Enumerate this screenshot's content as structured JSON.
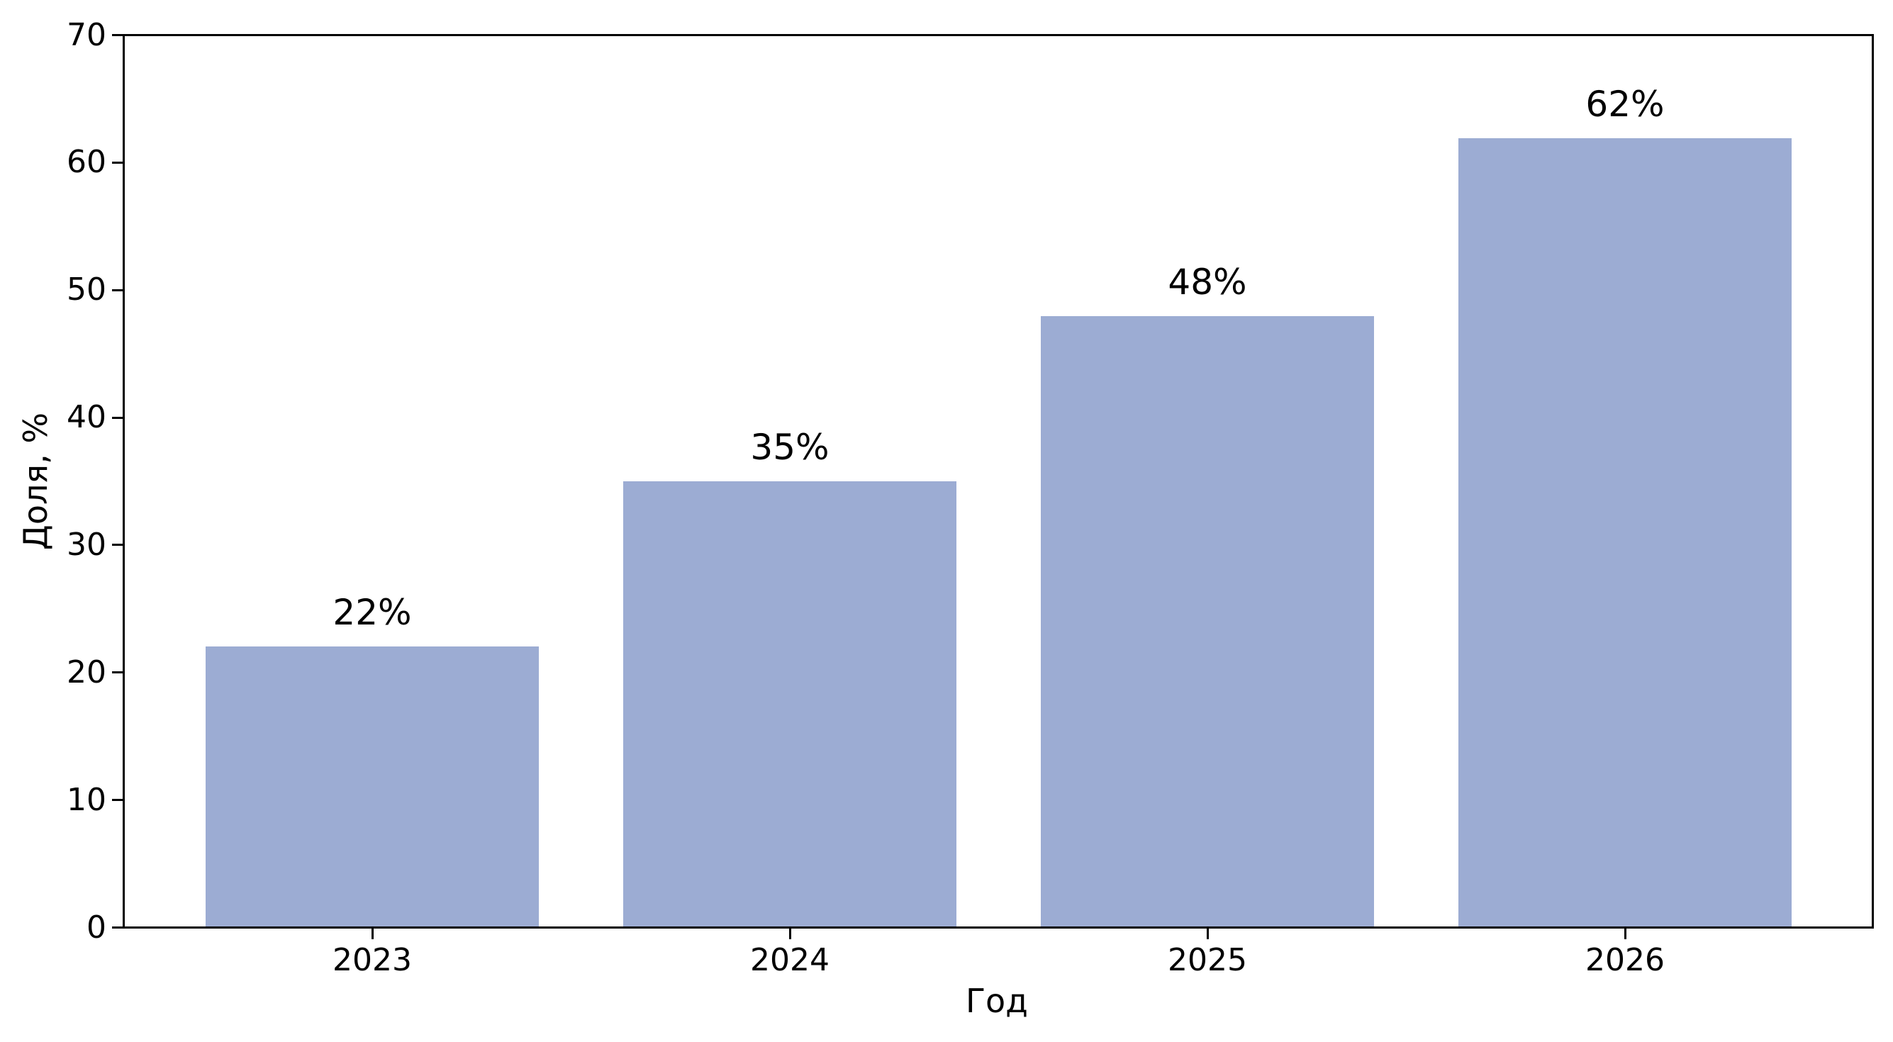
{
  "chart_data": {
    "type": "bar",
    "xlabel": "Год",
    "ylabel": "Доля, %",
    "categories": [
      "2023",
      "2024",
      "2025",
      "2026"
    ],
    "values": [
      22,
      35,
      48,
      62
    ],
    "bar_labels": [
      "22%",
      "35%",
      "48%",
      "62%"
    ],
    "ylim": [
      0,
      70
    ],
    "yticks": [
      0,
      10,
      20,
      30,
      40,
      50,
      60,
      70
    ],
    "bar_color": "#9cacd3",
    "axis_color": "#000000",
    "text_color": "#000000",
    "background": "#ffffff",
    "grid": false,
    "frame": "full-box",
    "legend_position": "none"
  }
}
